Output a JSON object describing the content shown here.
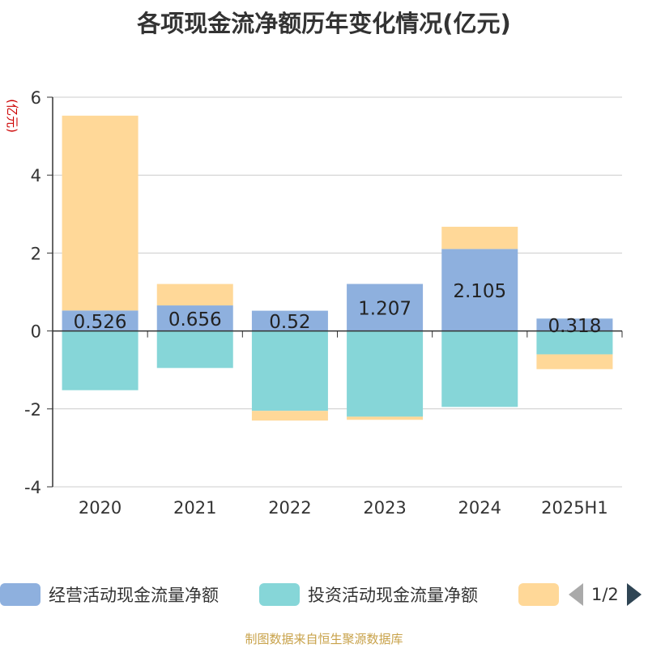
{
  "title": "各项现金流净额历年变化情况(亿元)",
  "source": "制图数据来自恒生聚源数据库",
  "legend": {
    "items": [
      {
        "label": "经营活动现金流量净额",
        "color": "#8eb0de"
      },
      {
        "label": "投资活动现金流量净额",
        "color": "#86d6d8"
      },
      {
        "label": "",
        "color": "#ffd898"
      }
    ],
    "page": "1/2"
  },
  "chart_data": {
    "type": "bar",
    "stacked": true,
    "categories": [
      "2020",
      "2021",
      "2022",
      "2023",
      "2024",
      "2025H1"
    ],
    "ylabel": "(亿元)",
    "ylim": [
      -4,
      6
    ],
    "yticks": [
      -4,
      -2,
      0,
      2,
      4,
      6
    ],
    "grid": true,
    "legend_position": "bottom",
    "series": [
      {
        "name": "经营活动现金流量净额",
        "color": "#8eb0de",
        "values": [
          0.526,
          0.656,
          0.52,
          1.207,
          2.105,
          0.318
        ],
        "labels": [
          "0.526",
          "0.656",
          "0.52",
          "1.207",
          "2.105",
          "0.318"
        ]
      },
      {
        "name": "投资活动现金流量净额",
        "color": "#86d6d8",
        "values": [
          -1.52,
          -0.95,
          -2.05,
          -2.2,
          -1.95,
          -0.6
        ]
      },
      {
        "color": "#ffd898",
        "values": [
          5.0,
          0.55,
          -0.25,
          -0.08,
          0.57,
          -0.38
        ]
      }
    ]
  }
}
